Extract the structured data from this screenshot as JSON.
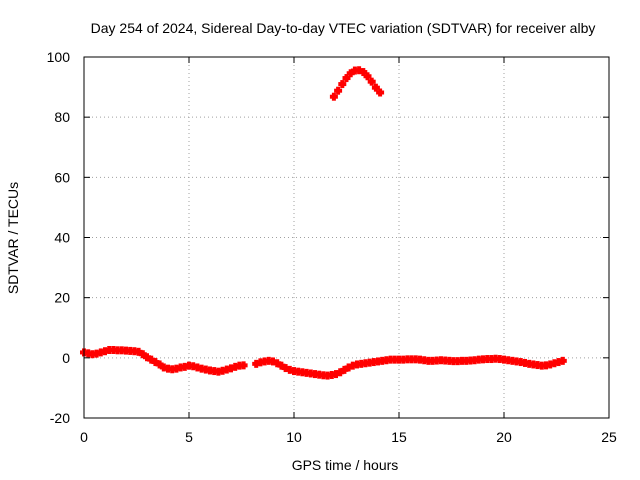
{
  "chart_data": {
    "type": "scatter",
    "title": "Day 254 of 2024, Sidereal Day-to-day VTEC variation (SDTVAR) for receiver alby",
    "xlabel": "GPS time / hours",
    "ylabel": "SDTVAR / TECUs",
    "xlim": [
      0,
      25
    ],
    "ylim": [
      -20,
      100
    ],
    "xticks": [
      0,
      5,
      10,
      15,
      20,
      25
    ],
    "yticks": [
      -20,
      0,
      20,
      40,
      60,
      80,
      100
    ],
    "grid": true,
    "series_color": "#ff0000",
    "series": [
      {
        "name": "SDTVAR",
        "x": [
          0.0,
          0.2,
          0.4,
          0.6,
          0.8,
          1.0,
          1.2,
          1.4,
          1.6,
          1.8,
          2.0,
          2.2,
          2.4,
          2.6,
          2.8,
          3.0,
          3.2,
          3.4,
          3.6,
          3.8,
          4.0,
          4.2,
          4.4,
          4.6,
          4.8,
          5.0,
          5.2,
          5.4,
          5.6,
          5.8,
          6.0,
          6.2,
          6.4,
          6.6,
          6.8,
          7.0,
          7.2,
          7.4,
          7.6,
          8.2,
          8.4,
          8.6,
          8.8,
          9.0,
          9.2,
          9.4,
          9.6,
          9.8,
          10.0,
          10.2,
          10.4,
          10.6,
          10.8,
          11.0,
          11.2,
          11.4,
          11.6,
          11.8,
          12.0,
          12.2,
          12.4,
          12.6,
          12.8,
          13.0,
          13.2,
          13.4,
          13.6,
          13.8,
          14.0,
          14.2,
          14.4,
          14.6,
          14.8,
          15.0,
          15.2,
          15.4,
          15.6,
          15.8,
          16.0,
          16.2,
          16.4,
          16.6,
          16.8,
          17.0,
          17.2,
          17.4,
          17.6,
          17.8,
          18.0,
          18.2,
          18.4,
          18.6,
          18.8,
          19.0,
          19.2,
          19.4,
          19.6,
          19.8,
          20.0,
          20.2,
          20.4,
          20.6,
          20.8,
          21.0,
          21.2,
          21.4,
          21.6,
          21.8,
          22.0,
          22.2,
          22.4,
          22.6,
          22.8,
          11.9,
          12.1,
          12.3,
          12.5,
          12.7,
          12.9,
          13.1,
          13.3,
          13.5,
          13.7,
          13.9,
          14.1
        ],
        "y": [
          1.8,
          1.5,
          1.2,
          1.4,
          1.8,
          2.2,
          2.6,
          2.6,
          2.5,
          2.5,
          2.4,
          2.3,
          2.2,
          2.0,
          1.2,
          0.2,
          -0.6,
          -1.4,
          -2.2,
          -3.2,
          -3.6,
          -3.8,
          -3.6,
          -3.2,
          -3.0,
          -2.6,
          -2.8,
          -3.2,
          -3.6,
          -3.9,
          -4.2,
          -4.4,
          -4.6,
          -4.3,
          -3.9,
          -3.5,
          -3.0,
          -2.6,
          -2.5,
          -2.0,
          -1.5,
          -1.2,
          -1.0,
          -1.2,
          -1.8,
          -2.6,
          -3.4,
          -4.0,
          -4.4,
          -4.6,
          -4.8,
          -5.0,
          -5.2,
          -5.4,
          -5.6,
          -5.8,
          -5.9,
          -5.7,
          -5.4,
          -4.8,
          -4.0,
          -3.2,
          -2.6,
          -2.2,
          -2.0,
          -1.8,
          -1.6,
          -1.4,
          -1.2,
          -1.0,
          -0.8,
          -0.6,
          -0.6,
          -0.6,
          -0.6,
          -0.5,
          -0.5,
          -0.5,
          -0.6,
          -0.8,
          -1.0,
          -1.0,
          -0.9,
          -0.8,
          -0.9,
          -1.0,
          -1.1,
          -1.1,
          -1.0,
          -1.0,
          -0.9,
          -0.8,
          -0.6,
          -0.5,
          -0.4,
          -0.4,
          -0.3,
          -0.4,
          -0.6,
          -0.8,
          -1.0,
          -1.2,
          -1.4,
          -1.7,
          -2.0,
          -2.2,
          -2.4,
          -2.6,
          -2.5,
          -2.2,
          -1.8,
          -1.4,
          -1.0,
          86.8,
          88.8,
          91.0,
          93.0,
          94.6,
          95.5,
          95.6,
          95.0,
          93.6,
          91.8,
          89.8,
          88.2
        ]
      }
    ]
  }
}
